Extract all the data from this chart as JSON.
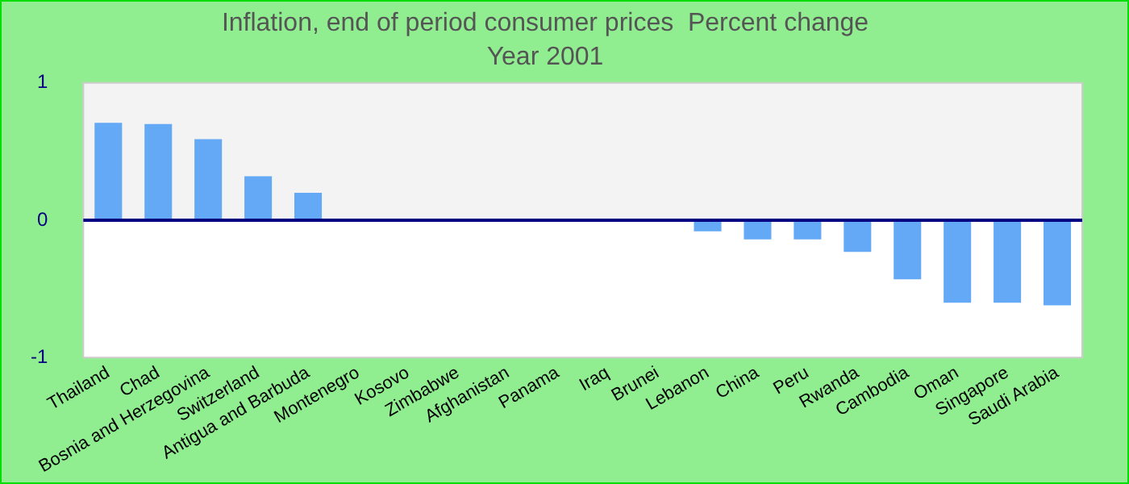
{
  "chart_data": {
    "type": "bar",
    "title": "Inflation, end of period consumer prices  Percent change",
    "subtitle": "Year 2001",
    "categories": [
      "Thailand",
      "Chad",
      "Bosnia and Herzegovina",
      "Switzerland",
      "Antigua and Barbuda",
      "Montenegro",
      "Kosovo",
      "Zimbabwe",
      "Afghanistan",
      "Panama",
      "Iraq",
      "Brunei",
      "Lebanon",
      "China",
      "Peru",
      "Rwanda",
      "Cambodia",
      "Oman",
      "Singapore",
      "Saudi Arabia"
    ],
    "values": [
      0.71,
      0.7,
      0.59,
      0.32,
      0.2,
      0,
      0,
      0,
      0,
      0,
      0,
      0,
      -0.08,
      -0.14,
      -0.14,
      -0.23,
      -0.43,
      -0.6,
      -0.6,
      -0.62
    ],
    "color": "#63a9f5",
    "bands": [
      {
        "axis": "y",
        "from": 0,
        "to": 1,
        "color": "#f3f3f3"
      },
      {
        "axis": "y",
        "from": -1,
        "to": 0,
        "color": "#ffffff"
      }
    ],
    "ref_lines": [
      {
        "axis": "y",
        "value": 0,
        "color": "#000080"
      }
    ],
    "ylim": [
      -1,
      1
    ],
    "yticks": [
      -1,
      0,
      1
    ],
    "grid": false,
    "legend": false
  }
}
